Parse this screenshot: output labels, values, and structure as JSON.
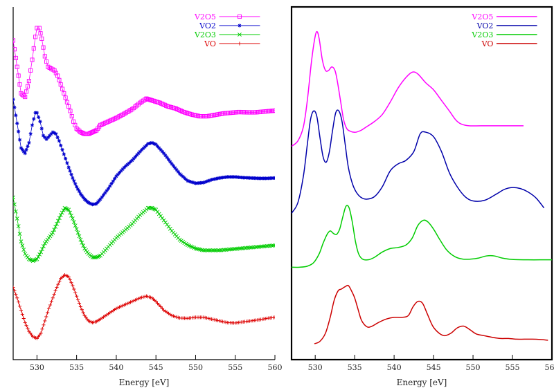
{
  "chart_data": [
    {
      "type": "scatter",
      "title": "",
      "xlabel": "Energy [eV]",
      "ylabel": "",
      "xlim": [
        527,
        560
      ],
      "ylim": [
        0,
        1
      ],
      "grid": false,
      "legend_position": "top-right",
      "x_ticks": [
        530,
        535,
        540,
        545,
        550,
        555,
        560
      ],
      "x_tick_labels": [
        "530",
        "535",
        "540",
        "545",
        "550",
        "555",
        "560"
      ],
      "series": [
        {
          "name": "V2O5",
          "color": "#ff00ff",
          "marker": "square",
          "x": [
            527.0,
            527.5,
            528.0,
            528.5,
            529.0,
            529.4,
            529.8,
            530.0,
            530.3,
            530.6,
            531.0,
            531.4,
            531.8,
            532.2,
            532.6,
            533.0,
            533.4,
            533.8,
            534.2,
            534.6,
            535.0,
            535.5,
            536.0,
            536.5,
            537.0,
            537.5,
            538.0,
            539.0,
            540.0,
            541.0,
            542.0,
            543.0,
            543.8,
            544.5,
            545.5,
            546.5,
            547.5,
            548.5,
            549.5,
            550.5,
            551.5,
            552.5,
            553.5,
            554.5,
            555.5,
            556.5,
            557.5,
            558.5,
            559.5,
            560.0
          ],
          "y": [
            0.905,
            0.83,
            0.755,
            0.745,
            0.79,
            0.85,
            0.915,
            0.94,
            0.94,
            0.91,
            0.86,
            0.83,
            0.825,
            0.82,
            0.805,
            0.78,
            0.755,
            0.73,
            0.705,
            0.675,
            0.655,
            0.645,
            0.64,
            0.64,
            0.645,
            0.65,
            0.665,
            0.675,
            0.685,
            0.697,
            0.71,
            0.728,
            0.74,
            0.735,
            0.728,
            0.718,
            0.712,
            0.702,
            0.695,
            0.69,
            0.69,
            0.694,
            0.698,
            0.7,
            0.702,
            0.701,
            0.701,
            0.703,
            0.705,
            0.706
          ]
        },
        {
          "name": "VO2",
          "color": "#0000cc",
          "marker": "star",
          "x": [
            527.0,
            527.5,
            528.0,
            528.5,
            529.0,
            529.4,
            529.8,
            530.0,
            530.4,
            530.8,
            531.2,
            531.6,
            532.0,
            532.4,
            532.8,
            533.2,
            533.6,
            534.0,
            534.5,
            535.0,
            535.5,
            536.0,
            536.5,
            537.0,
            537.5,
            538.0,
            539.0,
            540.0,
            541.0,
            542.0,
            543.0,
            544.0,
            544.5,
            545.0,
            546.0,
            547.0,
            548.0,
            549.0,
            550.0,
            551.0,
            552.0,
            553.0,
            554.0,
            555.0,
            556.0,
            557.0,
            558.0,
            559.0,
            560.0
          ],
          "y": [
            0.738,
            0.67,
            0.6,
            0.585,
            0.615,
            0.665,
            0.7,
            0.7,
            0.675,
            0.635,
            0.625,
            0.635,
            0.645,
            0.64,
            0.62,
            0.595,
            0.57,
            0.545,
            0.515,
            0.49,
            0.47,
            0.455,
            0.445,
            0.44,
            0.442,
            0.455,
            0.485,
            0.52,
            0.545,
            0.565,
            0.59,
            0.612,
            0.615,
            0.61,
            0.585,
            0.555,
            0.527,
            0.507,
            0.5,
            0.502,
            0.51,
            0.515,
            0.518,
            0.518,
            0.516,
            0.515,
            0.514,
            0.514,
            0.515
          ]
        },
        {
          "name": "V2O3",
          "color": "#00cc00",
          "marker": "cross",
          "x": [
            527.0,
            527.5,
            528.0,
            528.5,
            529.0,
            529.5,
            530.0,
            530.5,
            531.0,
            531.5,
            532.0,
            532.5,
            533.0,
            533.5,
            534.0,
            534.5,
            535.0,
            535.5,
            536.0,
            536.5,
            537.0,
            537.5,
            538.0,
            539.0,
            540.0,
            541.0,
            542.0,
            543.0,
            544.0,
            544.5,
            545.0,
            546.0,
            547.0,
            548.0,
            549.0,
            550.0,
            551.0,
            552.0,
            553.0,
            554.0,
            555.0,
            556.0,
            557.0,
            558.0,
            559.0,
            560.0
          ],
          "y": [
            0.46,
            0.4,
            0.335,
            0.3,
            0.285,
            0.28,
            0.285,
            0.305,
            0.33,
            0.345,
            0.36,
            0.385,
            0.41,
            0.43,
            0.425,
            0.4,
            0.37,
            0.34,
            0.315,
            0.3,
            0.29,
            0.29,
            0.295,
            0.32,
            0.345,
            0.365,
            0.385,
            0.41,
            0.43,
            0.43,
            0.425,
            0.395,
            0.365,
            0.34,
            0.325,
            0.315,
            0.31,
            0.31,
            0.31,
            0.312,
            0.314,
            0.316,
            0.318,
            0.32,
            0.322,
            0.324
          ]
        },
        {
          "name": "VO",
          "color": "#dd0000",
          "marker": "plus",
          "x": [
            527.0,
            527.5,
            528.0,
            528.5,
            529.0,
            529.5,
            530.0,
            530.5,
            531.0,
            531.5,
            532.0,
            532.5,
            533.0,
            533.5,
            534.0,
            534.5,
            535.0,
            535.5,
            536.0,
            536.5,
            537.0,
            537.5,
            538.0,
            539.0,
            540.0,
            541.0,
            542.0,
            543.0,
            543.8,
            544.5,
            545.0,
            546.0,
            547.0,
            548.0,
            549.0,
            550.0,
            551.0,
            552.0,
            553.0,
            554.0,
            555.0,
            556.0,
            557.0,
            558.0,
            559.0,
            560.0
          ],
          "y": [
            0.205,
            0.175,
            0.14,
            0.105,
            0.08,
            0.065,
            0.06,
            0.075,
            0.11,
            0.145,
            0.175,
            0.205,
            0.23,
            0.24,
            0.235,
            0.21,
            0.18,
            0.15,
            0.125,
            0.11,
            0.105,
            0.108,
            0.115,
            0.13,
            0.145,
            0.155,
            0.165,
            0.175,
            0.18,
            0.175,
            0.165,
            0.14,
            0.125,
            0.118,
            0.117,
            0.12,
            0.12,
            0.115,
            0.11,
            0.105,
            0.104,
            0.107,
            0.11,
            0.113,
            0.117,
            0.12
          ]
        }
      ]
    },
    {
      "type": "line",
      "title": "",
      "xlabel": "Energy [eV]",
      "ylabel": "",
      "xlim": [
        527,
        560
      ],
      "ylim": [
        0,
        1
      ],
      "grid": false,
      "legend_position": "top-right",
      "x_ticks": [
        530,
        535,
        540,
        545,
        550,
        555,
        560
      ],
      "x_tick_labels": [
        "530",
        "535",
        "540",
        "545",
        "550",
        "555",
        "560"
      ],
      "series": [
        {
          "name": "V2O5",
          "color": "#ff00ff",
          "x": [
            527.0,
            527.8,
            528.5,
            529.0,
            529.5,
            529.9,
            530.2,
            530.5,
            530.9,
            531.3,
            531.7,
            532.1,
            532.5,
            532.8,
            533.2,
            533.6,
            534.0,
            534.4,
            534.8,
            535.2,
            535.8,
            536.5,
            537.5,
            538.5,
            539.5,
            540.5,
            541.5,
            542.3,
            543.0,
            544.0,
            545.0,
            546.0,
            547.0,
            547.8,
            548.5,
            549.5,
            551.0,
            553.0,
            555.0,
            556.4
          ],
          "y": [
            0.605,
            0.62,
            0.66,
            0.735,
            0.84,
            0.905,
            0.93,
            0.91,
            0.85,
            0.82,
            0.82,
            0.83,
            0.82,
            0.79,
            0.735,
            0.68,
            0.655,
            0.648,
            0.645,
            0.645,
            0.65,
            0.66,
            0.675,
            0.695,
            0.73,
            0.77,
            0.8,
            0.815,
            0.81,
            0.785,
            0.765,
            0.735,
            0.705,
            0.68,
            0.668,
            0.663,
            0.663,
            0.663,
            0.663,
            0.663
          ]
        },
        {
          "name": "VO2",
          "color": "#0000aa",
          "x": [
            527.0,
            527.8,
            528.5,
            529.0,
            529.4,
            529.8,
            530.2,
            530.6,
            531.0,
            531.4,
            531.8,
            532.2,
            532.6,
            533.0,
            533.4,
            533.8,
            534.2,
            534.7,
            535.2,
            535.8,
            536.5,
            537.5,
            538.5,
            539.5,
            540.5,
            541.5,
            542.5,
            543.3,
            544.0,
            545.0,
            546.0,
            547.0,
            548.0,
            549.0,
            550.0,
            551.5,
            553.0,
            554.0,
            555.0,
            556.0,
            557.0,
            558.0,
            559.0
          ],
          "y": [
            0.415,
            0.445,
            0.52,
            0.61,
            0.68,
            0.705,
            0.69,
            0.63,
            0.575,
            0.56,
            0.59,
            0.65,
            0.7,
            0.705,
            0.675,
            0.61,
            0.545,
            0.5,
            0.475,
            0.46,
            0.455,
            0.462,
            0.49,
            0.535,
            0.555,
            0.565,
            0.59,
            0.64,
            0.645,
            0.632,
            0.59,
            0.53,
            0.49,
            0.462,
            0.45,
            0.452,
            0.47,
            0.483,
            0.488,
            0.485,
            0.475,
            0.458,
            0.43
          ]
        },
        {
          "name": "V2O3",
          "color": "#00cc00",
          "x": [
            527.0,
            528.0,
            529.0,
            529.8,
            530.5,
            531.0,
            531.5,
            531.9,
            532.3,
            532.7,
            533.1,
            533.5,
            533.9,
            534.3,
            534.7,
            535.1,
            535.5,
            536.0,
            536.7,
            537.5,
            538.5,
            539.5,
            540.5,
            541.5,
            542.3,
            543.0,
            543.7,
            544.3,
            545.0,
            545.8,
            546.7,
            547.7,
            548.7,
            549.7,
            550.7,
            551.7,
            552.7,
            553.7,
            555.0,
            557.0,
            559.0,
            560.0
          ],
          "y": [
            0.262,
            0.262,
            0.265,
            0.275,
            0.3,
            0.33,
            0.355,
            0.365,
            0.358,
            0.355,
            0.37,
            0.405,
            0.435,
            0.43,
            0.39,
            0.335,
            0.3,
            0.285,
            0.283,
            0.29,
            0.305,
            0.315,
            0.318,
            0.325,
            0.345,
            0.38,
            0.395,
            0.39,
            0.37,
            0.34,
            0.31,
            0.292,
            0.285,
            0.285,
            0.288,
            0.294,
            0.294,
            0.288,
            0.284,
            0.283,
            0.283,
            0.283
          ]
        },
        {
          "name": "VO",
          "color": "#cc0000",
          "x": [
            529.9,
            530.6,
            531.3,
            531.9,
            532.4,
            532.9,
            533.3,
            533.8,
            534.2,
            534.6,
            535.0,
            535.4,
            535.8,
            536.2,
            536.7,
            537.3,
            538.0,
            539.0,
            540.0,
            541.0,
            541.8,
            542.4,
            543.0,
            543.6,
            544.2,
            544.9,
            545.7,
            546.4,
            547.2,
            548.0,
            548.8,
            549.6,
            550.4,
            551.4,
            552.5,
            553.5,
            554.5,
            555.5,
            556.5,
            557.5,
            558.5,
            559.5
          ],
          "y": [
            0.045,
            0.052,
            0.075,
            0.12,
            0.168,
            0.195,
            0.2,
            0.207,
            0.21,
            0.195,
            0.175,
            0.145,
            0.115,
            0.1,
            0.092,
            0.096,
            0.105,
            0.115,
            0.12,
            0.12,
            0.125,
            0.15,
            0.165,
            0.16,
            0.13,
            0.095,
            0.075,
            0.068,
            0.075,
            0.09,
            0.095,
            0.085,
            0.073,
            0.068,
            0.063,
            0.06,
            0.06,
            0.058,
            0.058,
            0.058,
            0.057,
            0.055
          ]
        }
      ]
    }
  ]
}
